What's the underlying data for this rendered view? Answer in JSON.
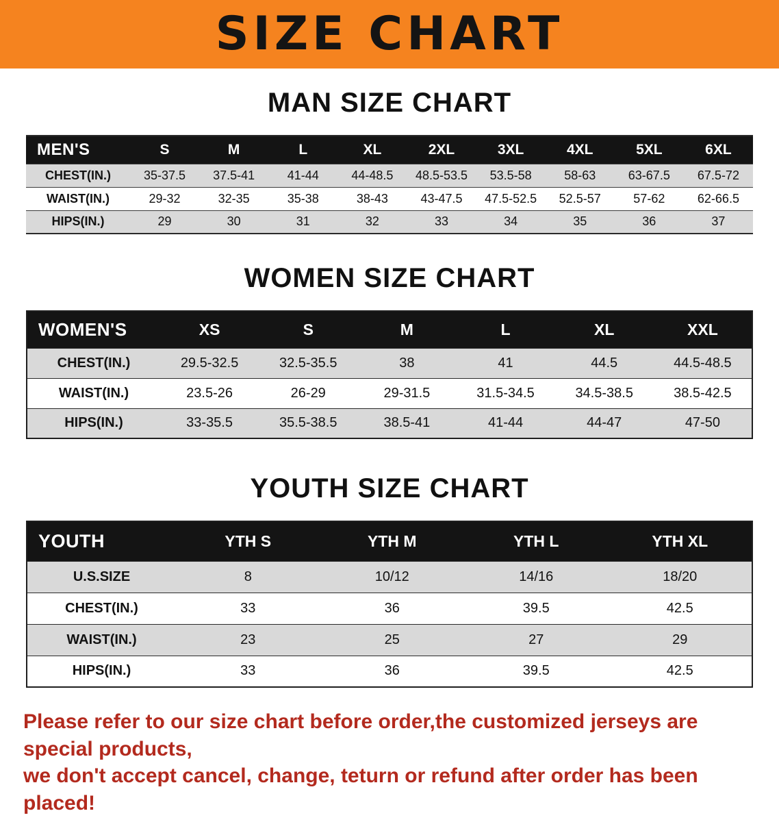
{
  "banner": {
    "title": "SIZE CHART"
  },
  "colors": {
    "banner_bg": "#f5831f",
    "table_header_bg": "#141414",
    "row_stripe": "#d9d9d9",
    "notice_text": "#b32a1e"
  },
  "sections": {
    "men": {
      "heading": "MAN SIZE CHART",
      "table": {
        "label": "MEN'S",
        "columns": [
          "S",
          "M",
          "L",
          "XL",
          "2XL",
          "3XL",
          "4XL",
          "5XL",
          "6XL"
        ],
        "rows": [
          {
            "label": "CHEST(IN.)",
            "values": [
              "35-37.5",
              "37.5-41",
              "41-44",
              "44-48.5",
              "48.5-53.5",
              "53.5-58",
              "58-63",
              "63-67.5",
              "67.5-72"
            ]
          },
          {
            "label": "WAIST(IN.)",
            "values": [
              "29-32",
              "32-35",
              "35-38",
              "38-43",
              "43-47.5",
              "47.5-52.5",
              "52.5-57",
              "57-62",
              "62-66.5"
            ]
          },
          {
            "label": "HIPS(IN.)",
            "values": [
              "29",
              "30",
              "31",
              "32",
              "33",
              "34",
              "35",
              "36",
              "37"
            ]
          }
        ]
      }
    },
    "women": {
      "heading": "WOMEN SIZE CHART",
      "table": {
        "label": "WOMEN'S",
        "columns": [
          "XS",
          "S",
          "M",
          "L",
          "XL",
          "XXL"
        ],
        "rows": [
          {
            "label": "CHEST(IN.)",
            "values": [
              "29.5-32.5",
              "32.5-35.5",
              "38",
              "41",
              "44.5",
              "44.5-48.5"
            ]
          },
          {
            "label": "WAIST(IN.)",
            "values": [
              "23.5-26",
              "26-29",
              "29-31.5",
              "31.5-34.5",
              "34.5-38.5",
              "38.5-42.5"
            ]
          },
          {
            "label": "HIPS(IN.)",
            "values": [
              "33-35.5",
              "35.5-38.5",
              "38.5-41",
              "41-44",
              "44-47",
              "47-50"
            ]
          }
        ]
      }
    },
    "youth": {
      "heading": "YOUTH SIZE CHART",
      "table": {
        "label": "YOUTH",
        "columns": [
          "YTH S",
          "YTH M",
          "YTH L",
          "YTH XL"
        ],
        "rows": [
          {
            "label": "U.S.SIZE",
            "values": [
              "8",
              "10/12",
              "14/16",
              "18/20"
            ]
          },
          {
            "label": "CHEST(IN.)",
            "values": [
              "33",
              "36",
              "39.5",
              "42.5"
            ]
          },
          {
            "label": "WAIST(IN.)",
            "values": [
              "23",
              "25",
              "27",
              "29"
            ]
          },
          {
            "label": "HIPS(IN.)",
            "values": [
              "33",
              "36",
              "39.5",
              "42.5"
            ]
          }
        ]
      }
    }
  },
  "footer": {
    "line1": "Please refer to our size chart before order,the customized jerseys are special products,",
    "line2": "we don't accept cancel, change, teturn or refund after order has been placed!"
  }
}
